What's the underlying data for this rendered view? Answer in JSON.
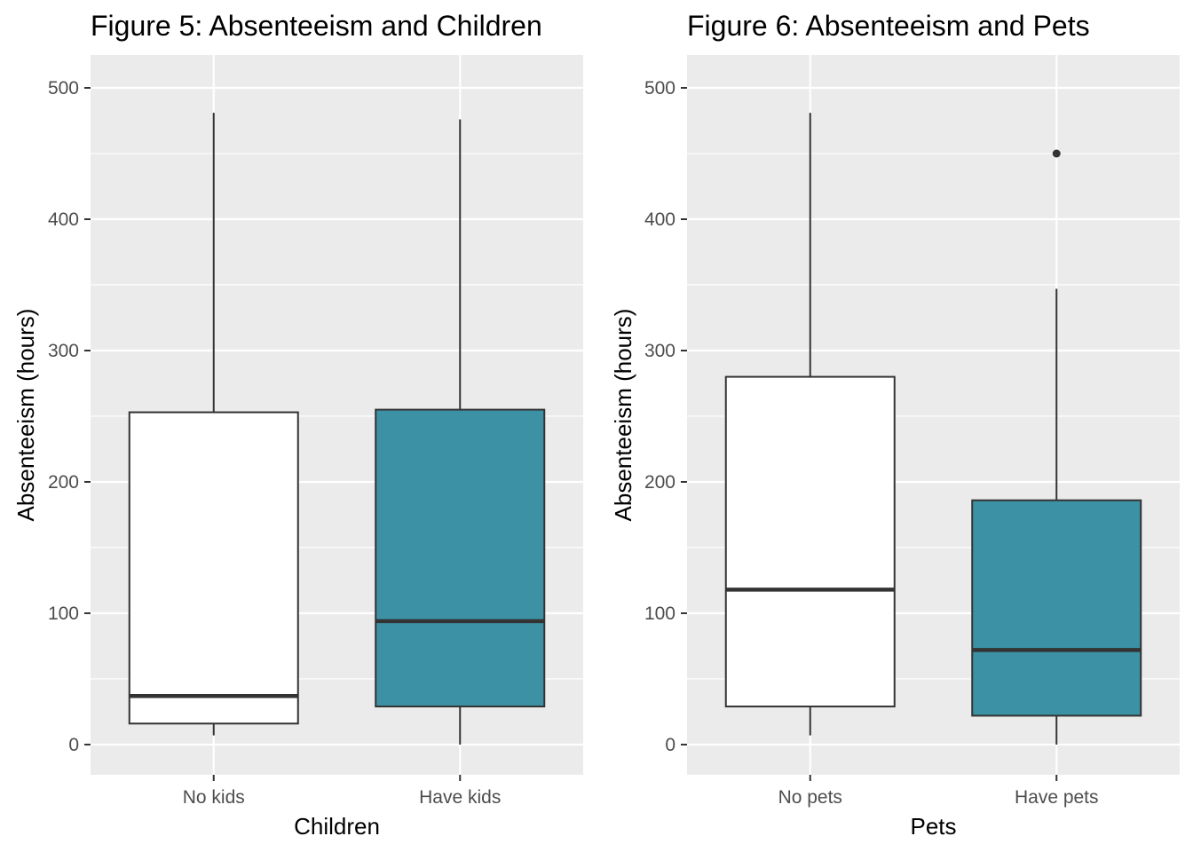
{
  "colors": {
    "panel_background": "#ebebeb",
    "grid": "#ffffff",
    "box_outline": "#333333",
    "fill_no": "#ffffff",
    "fill_yes": "#3c92a4",
    "tick_text": "#4d4d4d"
  },
  "chart_data": [
    {
      "type": "boxplot",
      "title": "Figure 5: Absenteeism and Children",
      "xlabel": "Children",
      "ylabel": "Absenteeism (hours)",
      "ylim": [
        -23,
        525
      ],
      "yticks": [
        "0",
        "100",
        "200",
        "300",
        "400",
        "500"
      ],
      "grid": true,
      "legend": "none",
      "categories": [
        "No kids",
        "Have kids"
      ],
      "boxes": [
        {
          "label": "No kids",
          "fill": "#ffffff",
          "whisker_low": 7,
          "q1": 16,
          "median": 37,
          "q3": 253,
          "whisker_high": 481,
          "outliers": []
        },
        {
          "label": "Have kids",
          "fill": "#3c92a4",
          "whisker_low": 0,
          "q1": 29,
          "median": 94,
          "q3": 255,
          "whisker_high": 476,
          "outliers": []
        }
      ]
    },
    {
      "type": "boxplot",
      "title": "Figure 6: Absenteeism and Pets",
      "xlabel": "Pets",
      "ylabel": "Absenteeism (hours)",
      "ylim": [
        -23,
        525
      ],
      "yticks": [
        "0",
        "100",
        "200",
        "300",
        "400",
        "500"
      ],
      "grid": true,
      "legend": "none",
      "categories": [
        "No pets",
        "Have pets"
      ],
      "boxes": [
        {
          "label": "No pets",
          "fill": "#ffffff",
          "whisker_low": 7,
          "q1": 29,
          "median": 118,
          "q3": 280,
          "whisker_high": 481,
          "outliers": []
        },
        {
          "label": "Have pets",
          "fill": "#3c92a4",
          "whisker_low": 0,
          "q1": 22,
          "median": 72,
          "q3": 186,
          "whisker_high": 347,
          "outliers": [
            450
          ]
        }
      ]
    }
  ]
}
